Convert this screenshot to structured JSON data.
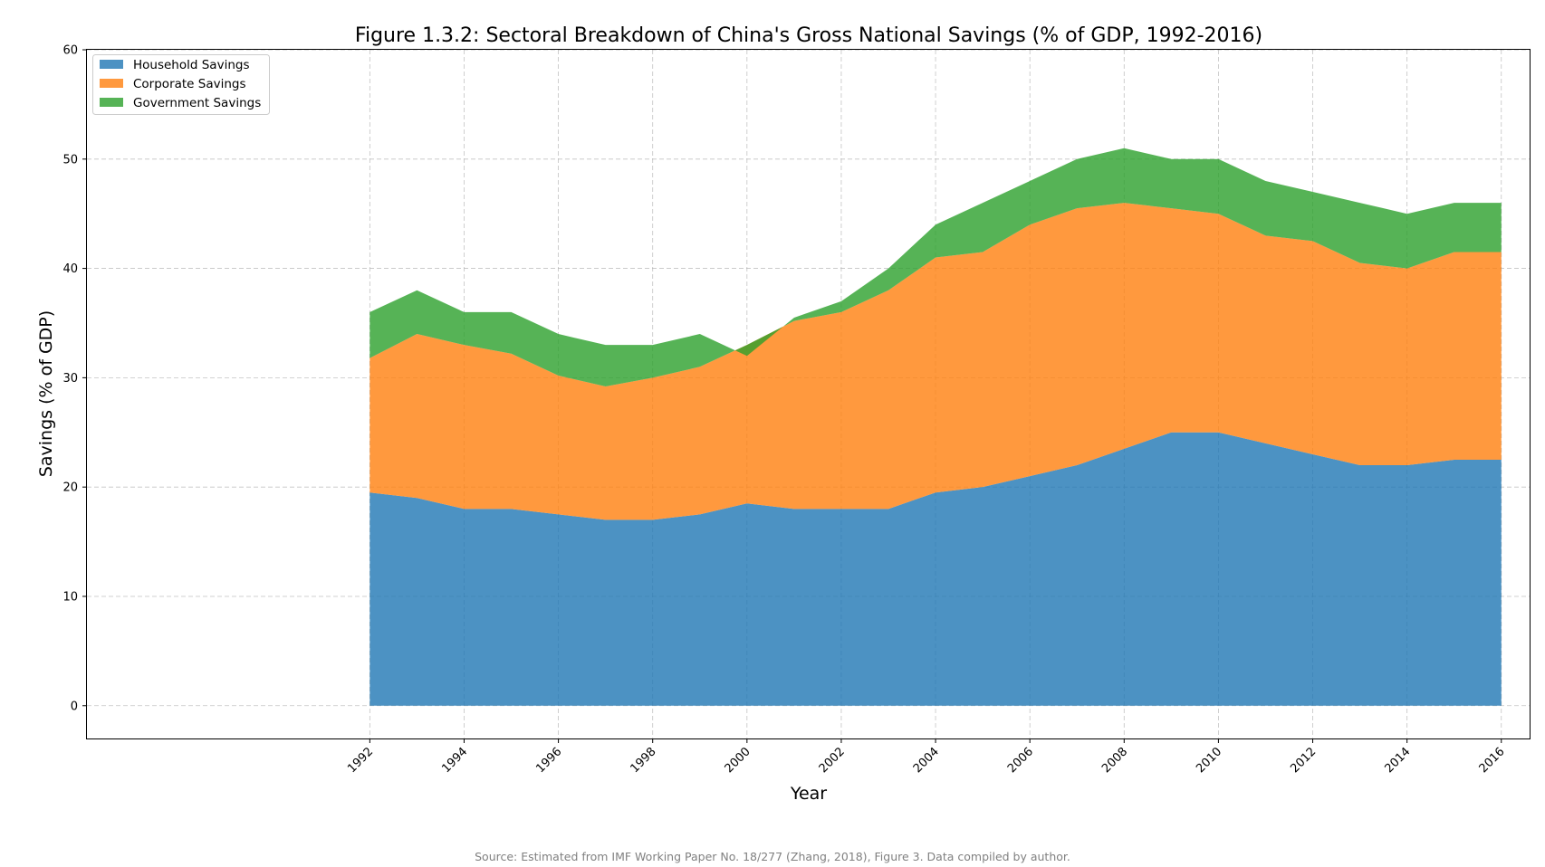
{
  "chart_data": {
    "type": "area",
    "stacked": true,
    "title": "Figure 1.3.2: Sectoral Breakdown of China's Gross National Savings (% of GDP, 1992-2016)",
    "xlabel": "Year",
    "ylabel": "Savings (% of GDP)",
    "xlim": [
      1986,
      2016.6
    ],
    "ylim": [
      -3,
      60
    ],
    "x_ticks": [
      1992,
      1994,
      1996,
      1998,
      2000,
      2002,
      2004,
      2006,
      2008,
      2010,
      2012,
      2014,
      2016
    ],
    "y_ticks": [
      0,
      10,
      20,
      30,
      40,
      50,
      60
    ],
    "grid": true,
    "legend_position": "top-left",
    "x": [
      1992,
      1993,
      1994,
      1995,
      1996,
      1997,
      1998,
      1999,
      2000,
      2001,
      2002,
      2003,
      2004,
      2005,
      2006,
      2007,
      2008,
      2009,
      2010,
      2011,
      2012,
      2013,
      2014,
      2015,
      2016
    ],
    "series": [
      {
        "name": "Household Savings",
        "color": "#1f77b4",
        "values": [
          19.5,
          19,
          18,
          18,
          17.5,
          17,
          17,
          17.5,
          18.5,
          18,
          18,
          18,
          19.5,
          20,
          21,
          22,
          23.5,
          25,
          25,
          24,
          23,
          22,
          22,
          22.5,
          22.5
        ]
      },
      {
        "name": "Corporate Savings",
        "color": "#ff7f0e",
        "values": [
          12.3,
          15,
          15,
          14.2,
          12.7,
          12.2,
          13,
          13.5,
          14.5,
          17.2,
          18,
          20,
          21.5,
          21.5,
          23,
          23.5,
          22.5,
          20.5,
          20,
          19,
          19.5,
          18.5,
          18,
          19,
          19
        ]
      },
      {
        "name": "Government Savings",
        "color": "#2ca02c",
        "values": [
          4.2,
          4,
          3,
          3.8,
          3.8,
          3.8,
          3,
          3,
          -1,
          0.3,
          1,
          2,
          3,
          4.5,
          4,
          4.5,
          5,
          4.5,
          5,
          5,
          4.5,
          5.5,
          5,
          4.5,
          4.5
        ]
      }
    ],
    "source_note": "Source: Estimated from IMF Working Paper No. 18/277 (Zhang, 2018), Figure 3. Data compiled by author."
  }
}
